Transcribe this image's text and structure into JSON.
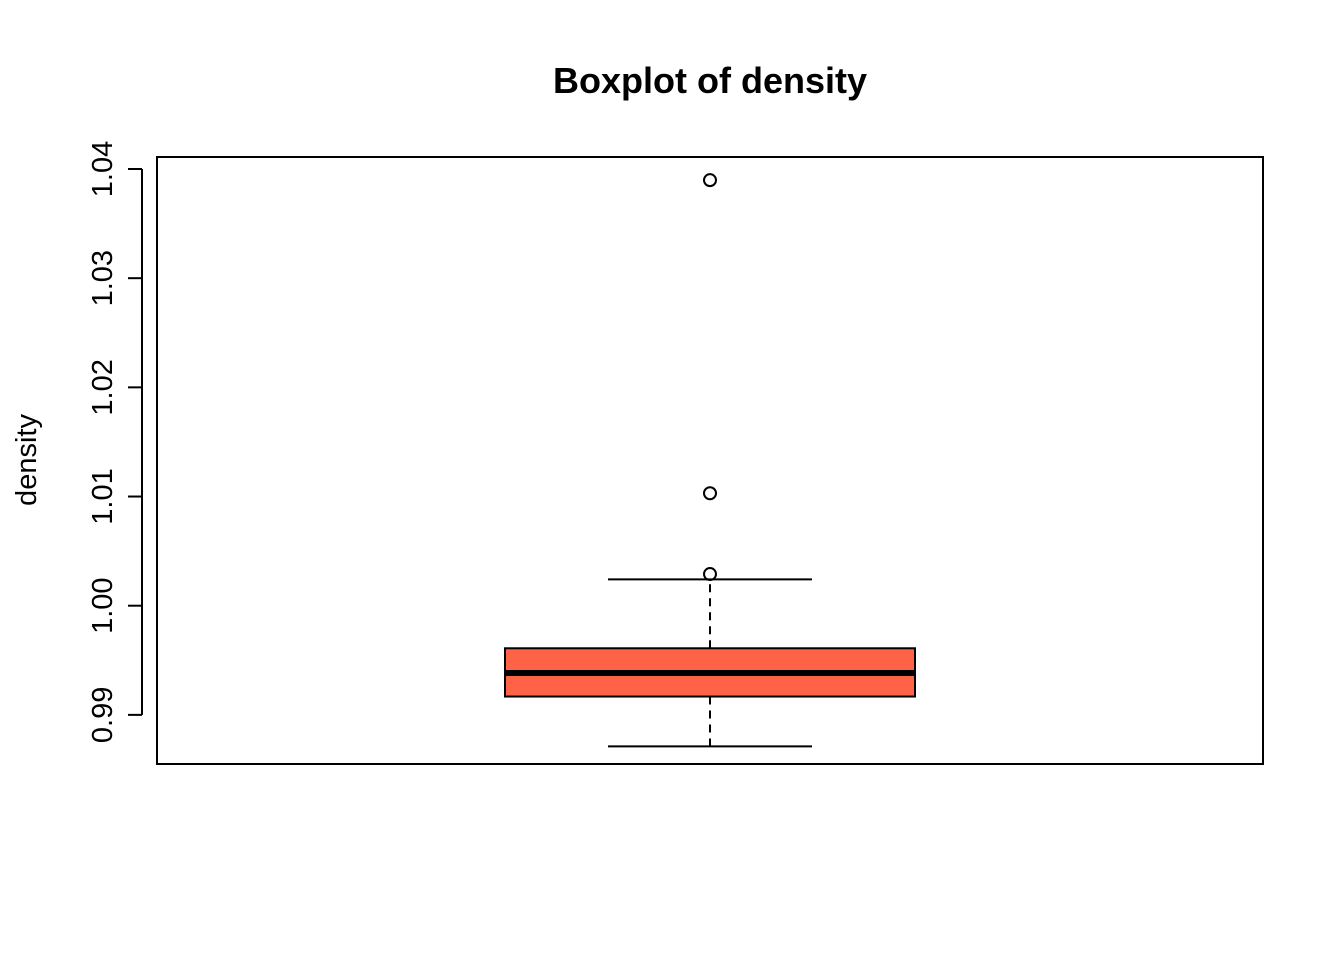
{
  "chart_data": {
    "type": "boxplot",
    "title": "Boxplot of density",
    "xlabel": "",
    "ylabel": "density",
    "ylim": [
      0.9855,
      1.0411
    ],
    "y_ticks": [
      0.99,
      1.0,
      1.01,
      1.02,
      1.03,
      1.04
    ],
    "y_tick_labels": [
      "0.99",
      "1.00",
      "1.01",
      "1.02",
      "1.03",
      "1.04"
    ],
    "grid": false,
    "series": [
      {
        "whisker_low": 0.98711,
        "q1": 0.99168,
        "median": 0.99383,
        "q3": 0.9961,
        "whisker_high": 1.00241,
        "outliers": [
          1.0029,
          1.0103,
          1.03898
        ],
        "fill_color": "#FF6347"
      }
    ]
  }
}
